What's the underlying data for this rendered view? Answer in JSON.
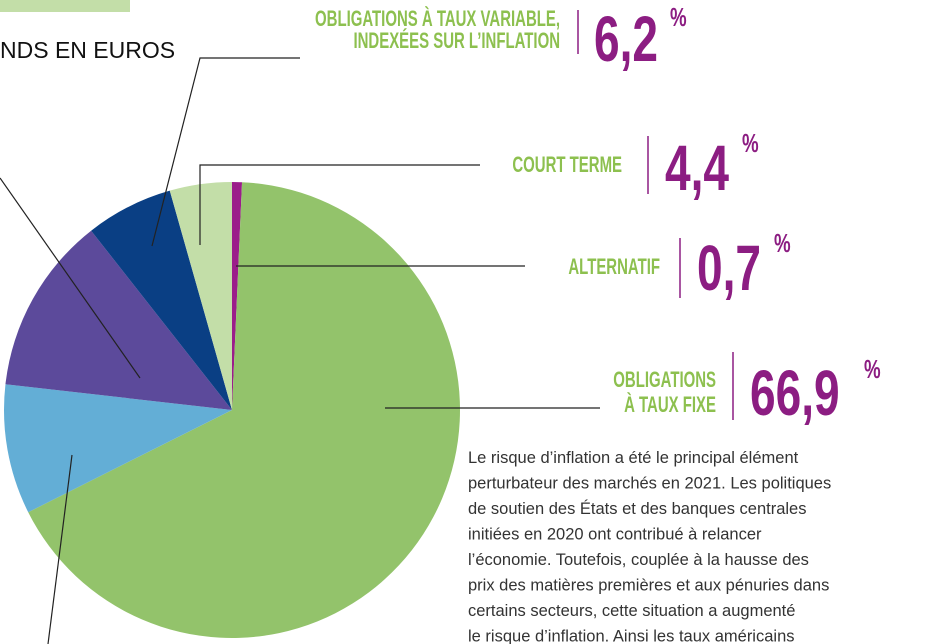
{
  "chart_data": {
    "type": "pie",
    "title": "NDS EN EUROS",
    "categories": [
      [
        "ALTERNATIF"
      ],
      [
        "OBLIGATIONS",
        "À TAUX FIXE"
      ],
      null,
      null,
      [
        "OBLIGATIONS À TAUX VARIABLE,",
        "INDEXÉES SUR L’INFLATION"
      ],
      [
        "COURT TERME"
      ]
    ],
    "values": [
      0.7,
      66.9,
      9.2,
      12.6,
      6.2,
      4.4
    ],
    "value_labels": [
      "0,7",
      "66,9",
      null,
      null,
      "6,2",
      "4,4"
    ],
    "unit": "%",
    "colors": [
      "#9b1d8a",
      "#93c36b",
      "#63aed6",
      "#5c4a9b",
      "#0a3f84",
      "#c3dea8"
    ]
  },
  "text": {
    "lines": [
      "Le risque d’inflation a été le principal élément",
      "perturbateur des marchés en 2021. Les politiques",
      "de soutien des États et des banques centrales",
      "initiées en 2020 ont contribué à relancer",
      "l’économie. Toutefois, couplée à la hausse des",
      "prix des matières premières et aux pénuries dans",
      "certains secteurs, cette situation a augmenté",
      "le risque d’inflation. Ainsi les taux américains"
    ]
  }
}
